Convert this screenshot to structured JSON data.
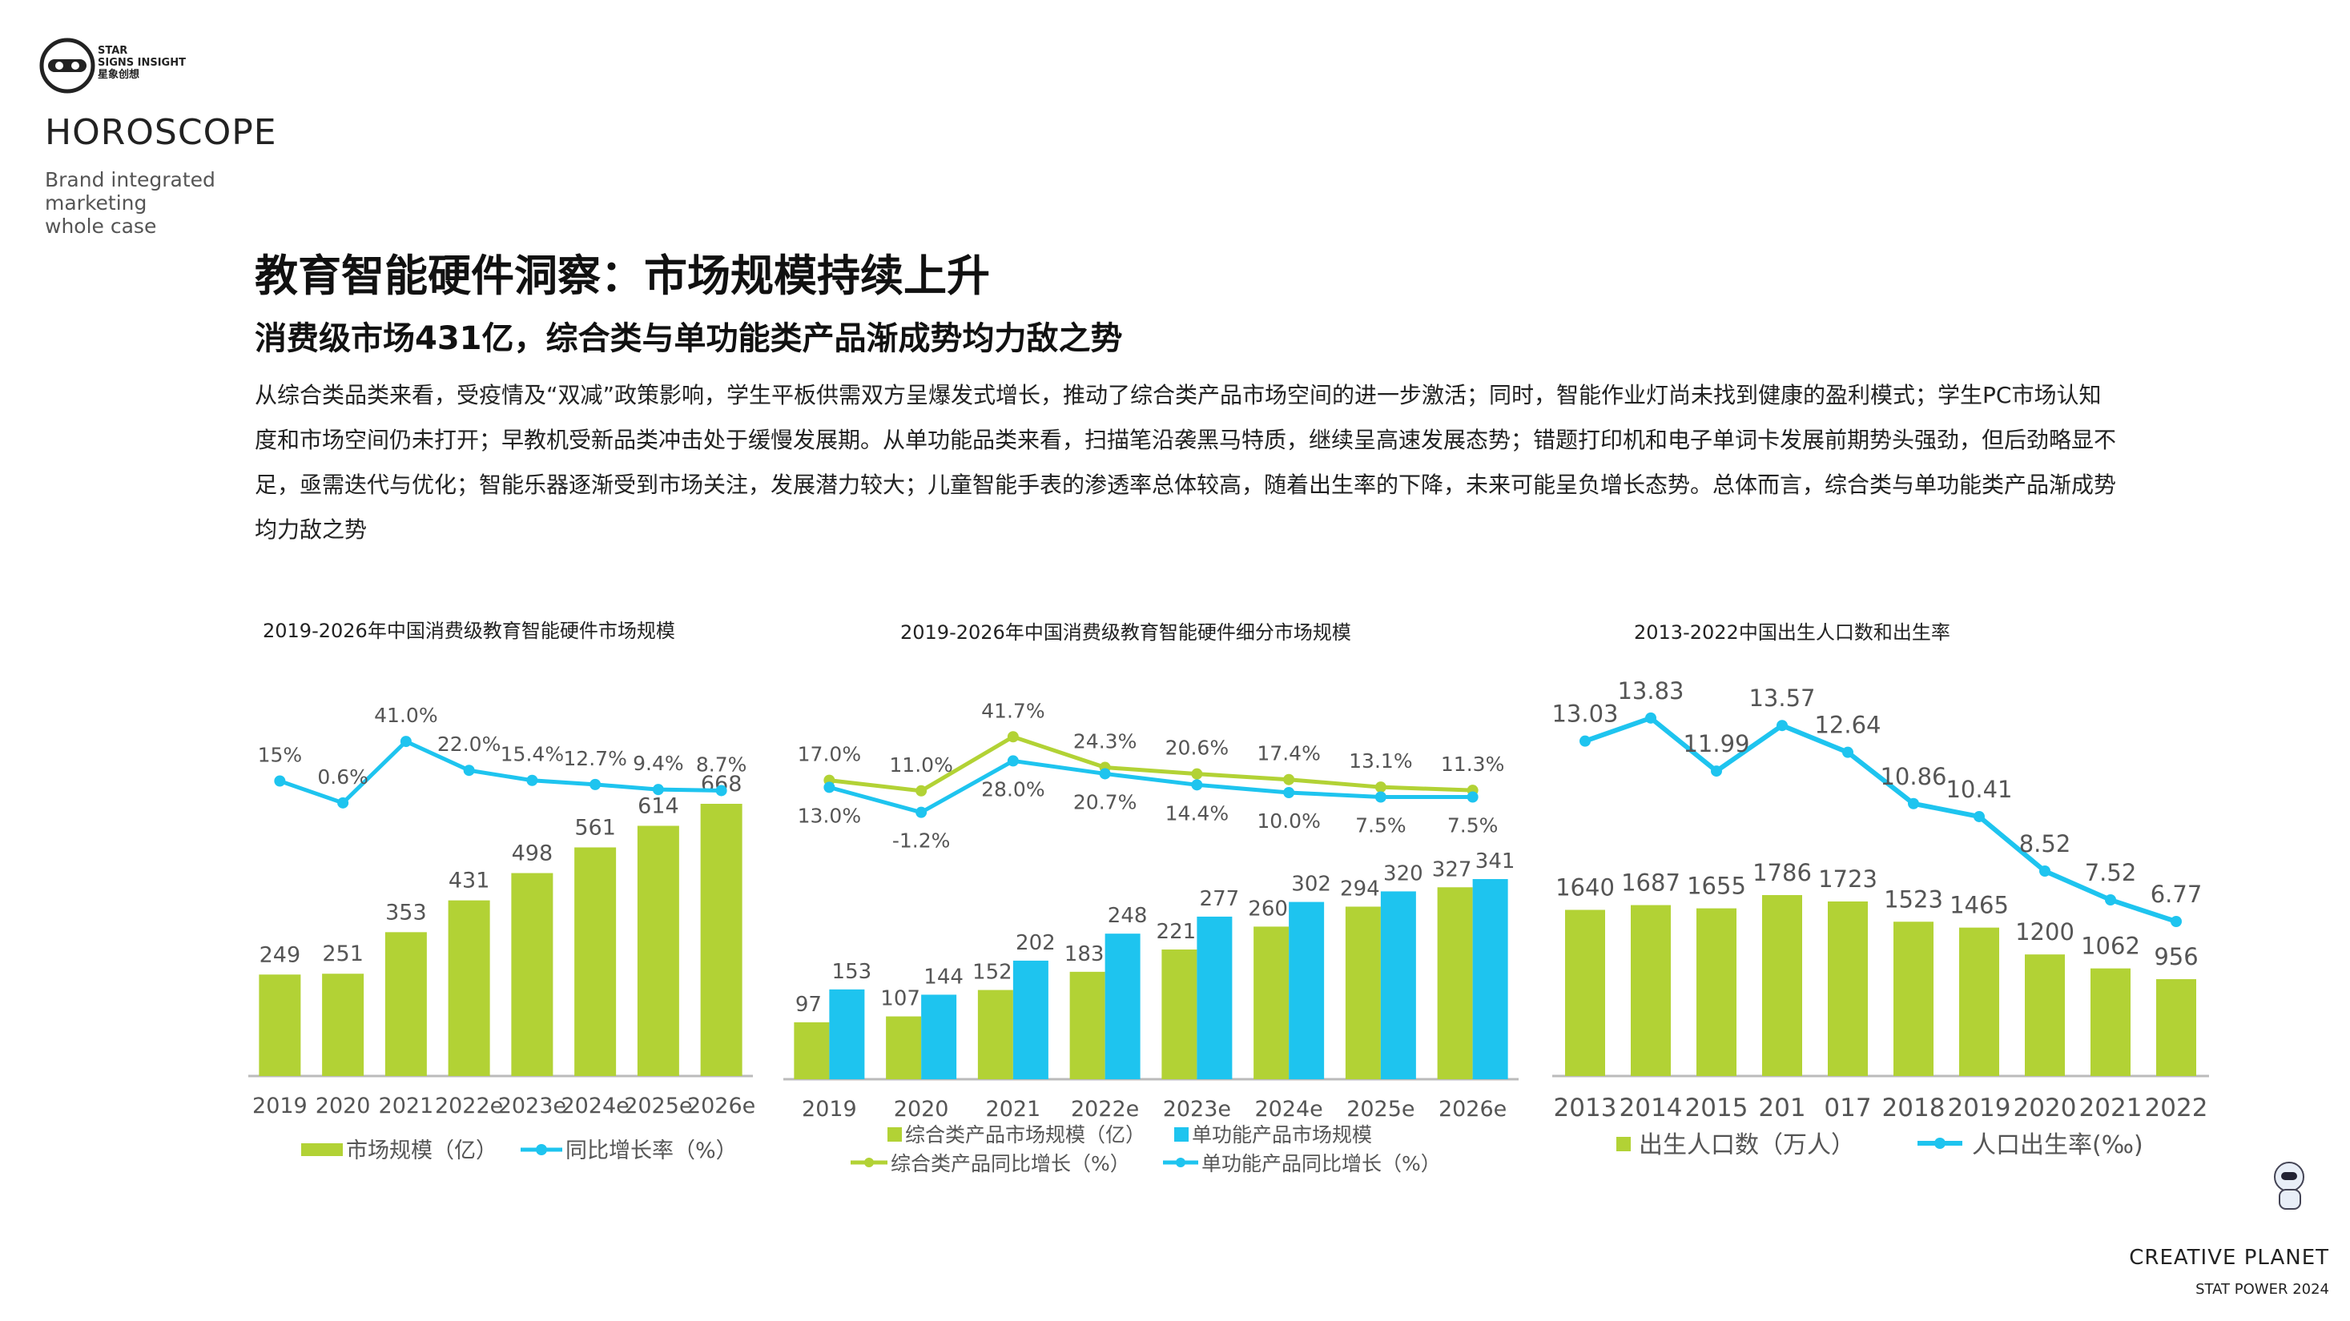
{
  "brand": {
    "logo_text_line1": "STAR",
    "logo_text_line2": "SIGNS INSIGHT",
    "logo_text_line3": "星象创想",
    "title": "HOROSCOPE",
    "tag_line1": "Brand integrated",
    "tag_line2": "marketing",
    "tag_line3": "whole case"
  },
  "page": {
    "title": "教育智能硬件洞察：市场规模持续上升",
    "subtitle": "消费级市场431亿，综合类与单功能类产品渐成势均力敌之势",
    "body": "从综合类品类来看，受疫情及“双减”政策影响，学生平板供需双方呈爆发式增长，推动了综合类产品市场空间的进一步激活；同时，智能作业灯尚未找到健康的盈利模式；学生PC市场认知度和市场空间仍未打开；早教机受新品类冲击处于缓慢发展期。从单功能品类来看，扫描笔沿袭黑马特质，继续呈高速发展态势；错题打印机和电子单词卡发展前期势头强劲，但后劲略显不足，亟需迭代与优化；智能乐器逐渐受到市场关注，发展潜力较大；儿童智能手表的渗透率总体较高，随着出生率的下降，未来可能呈负增长态势。总体而言，综合类与单功能类产品渐成势均力敌之势"
  },
  "colors": {
    "green": "#b2d235",
    "blue": "#1ec4ef",
    "axis": "#bbbbbb",
    "label": "#555555"
  },
  "footer": {
    "brand": "CREATIVE PLANET",
    "sub": "STAT POWER 2024"
  },
  "chart_data": [
    {
      "type": "bar",
      "title": "2019-2026年中国消费级教育智能硬件市场规模",
      "categories": [
        "2019",
        "2020",
        "2021",
        "2022e",
        "2023e",
        "2024e",
        "2025e",
        "2026e"
      ],
      "series": [
        {
          "name": "市场规模（亿）",
          "type": "bar",
          "values": [
            249,
            251,
            353,
            431,
            498,
            561,
            614,
            668
          ],
          "labels": [
            "249",
            "251",
            "353",
            "431",
            "498",
            "561",
            "614",
            "668"
          ]
        },
        {
          "name": "同比增长率（%）",
          "type": "line",
          "values": [
            15,
            0.6,
            41.0,
            22.0,
            15.4,
            12.7,
            9.4,
            8.7
          ],
          "labels": [
            "15%",
            "0.6%",
            "41.0%",
            "22.0%",
            "15.4%",
            "12.7%",
            "9.4%",
            "8.7%"
          ]
        }
      ],
      "legend": "bottom"
    },
    {
      "type": "bar",
      "title": "2019-2026年中国消费级教育智能硬件细分市场规模",
      "categories": [
        "2019",
        "2020",
        "2021",
        "2022e",
        "2023e",
        "2024e",
        "2025e",
        "2026e"
      ],
      "series": [
        {
          "name": "综合类产品市场规模（亿）",
          "type": "bar",
          "values": [
            97,
            107,
            152,
            183,
            221,
            260,
            294,
            327
          ],
          "labels": [
            "97",
            "107",
            "152",
            "183",
            "221",
            "260",
            "294",
            "327"
          ]
        },
        {
          "name": "单功能产品市场规模",
          "type": "bar",
          "values": [
            153,
            144,
            202,
            248,
            277,
            302,
            320,
            341
          ],
          "labels": [
            "153",
            "144",
            "202",
            "248",
            "277",
            "302",
            "320",
            "341"
          ]
        },
        {
          "name": "综合类产品同比增长（%）",
          "type": "line",
          "values": [
            17.0,
            11.0,
            41.7,
            24.3,
            20.6,
            17.4,
            13.1,
            11.3
          ],
          "labels": [
            "17.0%",
            "11.0%",
            "41.7%",
            "24.3%",
            "20.6%",
            "17.4%",
            "13.1%",
            "11.3%"
          ]
        },
        {
          "name": "单功能产品同比增长（%）",
          "type": "line",
          "values": [
            13.0,
            -1.2,
            28.0,
            20.7,
            14.4,
            10.0,
            7.5,
            7.5
          ],
          "labels": [
            "13.0%",
            "-1.2%",
            "28.0%",
            "20.7%",
            "14.4%",
            "10.0%",
            "7.5%",
            "7.5%"
          ]
        }
      ],
      "legend": "bottom"
    },
    {
      "type": "bar",
      "title": "2013-2022中国出生人口数和出生率",
      "categories": [
        "2013",
        "2014",
        "2015",
        "201",
        "017",
        "2018",
        "2019",
        "2020",
        "2021",
        "2022"
      ],
      "series": [
        {
          "name": "出生人口数（万人）",
          "type": "bar",
          "values": [
            1640,
            1687,
            1655,
            1786,
            1723,
            1523,
            1465,
            1200,
            1062,
            956
          ],
          "labels": [
            "1640",
            "1687",
            "1655",
            "1786",
            "1723",
            "1523",
            "1465",
            "1200",
            "1062",
            "956"
          ]
        },
        {
          "name": "人口出生率(‰)",
          "type": "line",
          "values": [
            13.03,
            13.83,
            11.99,
            13.57,
            12.64,
            10.86,
            10.41,
            8.52,
            7.52,
            6.77
          ],
          "labels": [
            "13.03",
            "13.83",
            "11.99",
            "13.57",
            "12.64",
            "10.86",
            "10.41",
            "8.52",
            "7.52",
            "6.77"
          ]
        }
      ],
      "legend": "bottom"
    }
  ]
}
